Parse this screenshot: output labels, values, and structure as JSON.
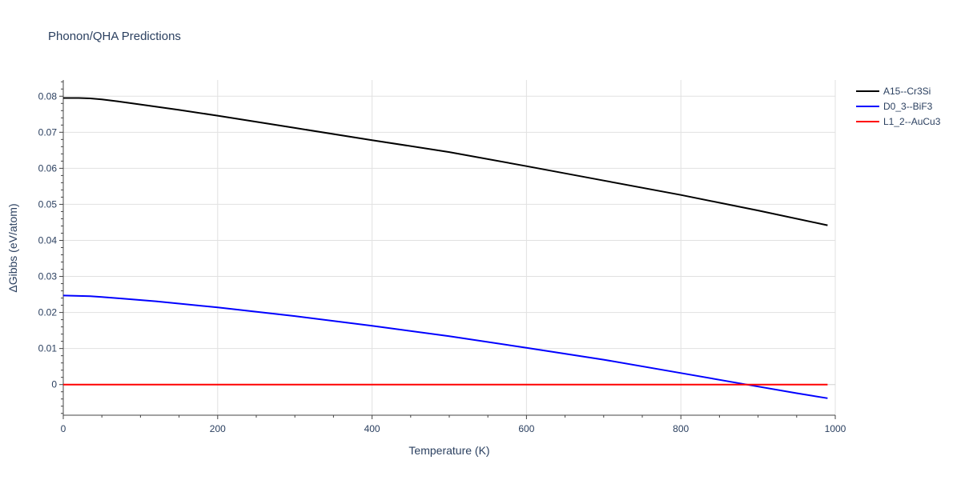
{
  "chart_data": {
    "type": "line",
    "title": "Phonon/QHA Predictions",
    "xlabel": "Temperature (K)",
    "ylabel": "ΔGibbs (eV/atom)",
    "xlim": [
      0,
      1000
    ],
    "ylim": [
      -0.0085,
      0.0845
    ],
    "xticks": [
      0,
      200,
      400,
      600,
      800,
      1000
    ],
    "xtick_labels": [
      "0",
      "200",
      "400",
      "600",
      "800",
      "1000"
    ],
    "yticks": [
      0,
      0.01,
      0.02,
      0.03,
      0.04,
      0.05,
      0.06,
      0.07,
      0.08
    ],
    "ytick_labels": [
      "0",
      "0.01",
      "0.02",
      "0.03",
      "0.04",
      "0.05",
      "0.06",
      "0.07",
      "0.08"
    ],
    "grid": true,
    "legend_position": "top-right, outside plot",
    "series": [
      {
        "name": "A15--Cr3Si",
        "color": "#000000",
        "x": [
          0,
          20,
          35,
          50,
          70,
          100,
          150,
          200,
          300,
          400,
          500,
          600,
          700,
          800,
          900,
          990
        ],
        "y": [
          0.0795,
          0.0795,
          0.0794,
          0.0791,
          0.0786,
          0.0777,
          0.0762,
          0.0746,
          0.0712,
          0.0678,
          0.0645,
          0.0606,
          0.0566,
          0.0526,
          0.0483,
          0.0442
        ]
      },
      {
        "name": "D0_3--BiF3",
        "color": "#0000ff",
        "x": [
          0,
          20,
          35,
          50,
          80,
          120,
          200,
          300,
          400,
          500,
          600,
          700,
          800,
          880,
          950,
          990
        ],
        "y": [
          0.0247,
          0.0246,
          0.0245,
          0.0243,
          0.0238,
          0.0231,
          0.0214,
          0.019,
          0.0163,
          0.0134,
          0.0102,
          0.0069,
          0.0032,
          0.0002,
          -0.0024,
          -0.0038
        ]
      },
      {
        "name": "L1_2--AuCu3",
        "color": "#ff0000",
        "x": [
          0,
          990
        ],
        "y": [
          0,
          0
        ]
      }
    ]
  }
}
